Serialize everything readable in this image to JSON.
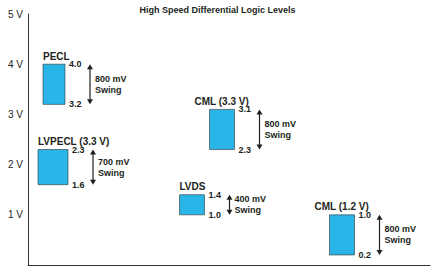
{
  "chart_data": {
    "type": "range_bar",
    "title": "High Speed Differential Logic Levels",
    "categories": [
      "PECL",
      "LVPECL (3.3 V)",
      "CML (3.3 V)",
      "LVDS",
      "CML (1.2 V)"
    ],
    "low": [
      3.2,
      1.6,
      2.3,
      1.0,
      0.2
    ],
    "high": [
      4.0,
      2.3,
      3.1,
      1.4,
      1.0
    ],
    "low_labels": [
      "3.2",
      "1.6",
      "2.3",
      "1.0",
      "0.2"
    ],
    "high_labels": [
      "4.0",
      "2.3",
      "3.1",
      "1.4",
      "1.0"
    ],
    "swing_labels": [
      "800 mV Swing",
      "700 mV Swing",
      "800 mV Swing",
      "400 mV Swing",
      "800 mV Swing"
    ],
    "color": "#29b5e8",
    "ylim": [
      0,
      5
    ],
    "yticks": [
      {
        "value": 1,
        "label": "1 V"
      },
      {
        "value": 2,
        "label": "2 V"
      },
      {
        "value": 3,
        "label": "3 V"
      },
      {
        "value": 4,
        "label": "4 V"
      },
      {
        "value": 5,
        "label": "5 V"
      }
    ],
    "grid": false,
    "data_labels": true,
    "tick_labels": "y"
  }
}
